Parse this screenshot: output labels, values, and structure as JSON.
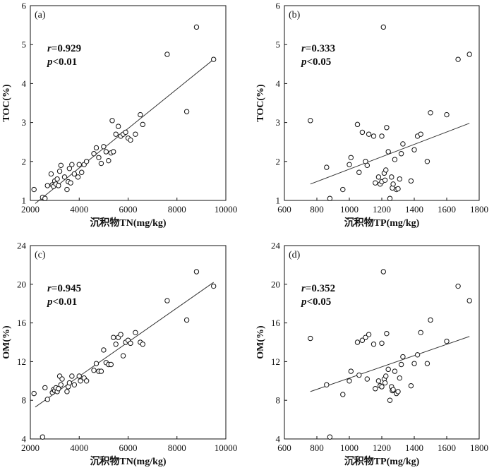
{
  "chart_data": [
    {
      "type": "scatter",
      "panel": "(a)",
      "xlabel": "沉积物TN(mg/kg)",
      "ylabel": "TOC(%)",
      "xlim": [
        2000,
        10000
      ],
      "ylim": [
        1,
        6
      ],
      "xticks": [
        "2000",
        "4000",
        "6000",
        "8000",
        "10000"
      ],
      "yticks": [
        "1",
        "2",
        "3",
        "4",
        "5",
        "6"
      ],
      "stat_r": "=0.929",
      "stat_p": "<0.01",
      "trend": [
        [
          2200,
          0.92
        ],
        [
          9500,
          4.62
        ]
      ],
      "points": [
        [
          2150,
          1.28
        ],
        [
          2500,
          1.08
        ],
        [
          2600,
          1.05
        ],
        [
          2700,
          1.38
        ],
        [
          2850,
          1.68
        ],
        [
          2900,
          1.4
        ],
        [
          2950,
          1.36
        ],
        [
          3000,
          1.5
        ],
        [
          3050,
          1.42
        ],
        [
          3100,
          1.55
        ],
        [
          3150,
          1.38
        ],
        [
          3200,
          1.75
        ],
        [
          3250,
          1.9
        ],
        [
          3400,
          1.6
        ],
        [
          3500,
          1.28
        ],
        [
          3550,
          1.48
        ],
        [
          3600,
          1.82
        ],
        [
          3650,
          1.45
        ],
        [
          3700,
          1.92
        ],
        [
          3800,
          1.68
        ],
        [
          3950,
          1.6
        ],
        [
          4000,
          1.92
        ],
        [
          4100,
          1.72
        ],
        [
          4200,
          1.92
        ],
        [
          4300,
          2.0
        ],
        [
          4600,
          2.2
        ],
        [
          4700,
          2.35
        ],
        [
          4800,
          2.1
        ],
        [
          4900,
          1.95
        ],
        [
          5000,
          2.38
        ],
        [
          5100,
          2.25
        ],
        [
          5200,
          2.02
        ],
        [
          5300,
          2.22
        ],
        [
          5350,
          3.05
        ],
        [
          5400,
          2.25
        ],
        [
          5500,
          2.7
        ],
        [
          5600,
          2.9
        ],
        [
          5700,
          2.65
        ],
        [
          5800,
          2.7
        ],
        [
          5900,
          2.75
        ],
        [
          6000,
          2.6
        ],
        [
          6100,
          2.55
        ],
        [
          6300,
          2.7
        ],
        [
          6500,
          3.2
        ],
        [
          6600,
          2.95
        ],
        [
          7600,
          4.75
        ],
        [
          8400,
          3.28
        ],
        [
          8800,
          5.45
        ],
        [
          9500,
          4.62
        ]
      ]
    },
    {
      "type": "scatter",
      "panel": "(b)",
      "xlabel": "沉积物TP(mg/kg)",
      "ylabel": "TOC(%)",
      "xlim": [
        600,
        1800
      ],
      "ylim": [
        1,
        6
      ],
      "xticks": [
        "600",
        "800",
        "1000",
        "1200",
        "1400",
        "1600",
        "1800"
      ],
      "yticks": [
        "1",
        "2",
        "3",
        "4",
        "5",
        "6"
      ],
      "stat_r": "=0.333",
      "stat_p": "<0.05",
      "trend": [
        [
          760,
          1.42
        ],
        [
          1740,
          2.98
        ]
      ],
      "points": [
        [
          760,
          3.05
        ],
        [
          860,
          1.85
        ],
        [
          880,
          1.05
        ],
        [
          960,
          1.28
        ],
        [
          1000,
          1.92
        ],
        [
          1010,
          2.1
        ],
        [
          1050,
          2.95
        ],
        [
          1060,
          1.72
        ],
        [
          1080,
          2.75
        ],
        [
          1100,
          2.0
        ],
        [
          1110,
          1.9
        ],
        [
          1120,
          2.7
        ],
        [
          1150,
          2.65
        ],
        [
          1160,
          1.45
        ],
        [
          1180,
          1.6
        ],
        [
          1190,
          1.42
        ],
        [
          1200,
          1.48
        ],
        [
          1200,
          2.65
        ],
        [
          1210,
          5.45
        ],
        [
          1215,
          1.7
        ],
        [
          1220,
          1.52
        ],
        [
          1225,
          1.78
        ],
        [
          1230,
          2.87
        ],
        [
          1240,
          2.25
        ],
        [
          1250,
          1.05
        ],
        [
          1260,
          1.6
        ],
        [
          1265,
          1.32
        ],
        [
          1270,
          1.42
        ],
        [
          1280,
          2.05
        ],
        [
          1290,
          1.28
        ],
        [
          1300,
          1.3
        ],
        [
          1310,
          1.55
        ],
        [
          1320,
          2.2
        ],
        [
          1330,
          2.45
        ],
        [
          1380,
          1.5
        ],
        [
          1400,
          2.3
        ],
        [
          1420,
          2.65
        ],
        [
          1440,
          2.7
        ],
        [
          1480,
          2.0
        ],
        [
          1500,
          3.25
        ],
        [
          1600,
          3.2
        ],
        [
          1670,
          4.62
        ],
        [
          1740,
          4.75
        ]
      ]
    },
    {
      "type": "scatter",
      "panel": "(c)",
      "xlabel": "沉积物TN(mg/kg)",
      "ylabel": "OM(%)",
      "xlim": [
        2000,
        10000
      ],
      "ylim": [
        4,
        24
      ],
      "xticks": [
        "2000",
        "4000",
        "6000",
        "8000",
        "10000"
      ],
      "yticks": [
        "4",
        "8",
        "12",
        "16",
        "20",
        "24"
      ],
      "stat_r": "=0.945",
      "stat_p": "<0.01",
      "trend": [
        [
          2200,
          7.3
        ],
        [
          9500,
          20.2
        ]
      ],
      "points": [
        [
          2150,
          8.7
        ],
        [
          2500,
          4.2
        ],
        [
          2600,
          9.3
        ],
        [
          2700,
          8.1
        ],
        [
          2900,
          8.8
        ],
        [
          2950,
          9.1
        ],
        [
          3000,
          9.0
        ],
        [
          3050,
          9.3
        ],
        [
          3100,
          8.9
        ],
        [
          3150,
          9.2
        ],
        [
          3200,
          10.5
        ],
        [
          3250,
          9.6
        ],
        [
          3300,
          10.2
        ],
        [
          3500,
          8.9
        ],
        [
          3550,
          9.4
        ],
        [
          3600,
          9.8
        ],
        [
          3700,
          10.5
        ],
        [
          3800,
          9.6
        ],
        [
          4000,
          10.5
        ],
        [
          4050,
          10.0
        ],
        [
          4200,
          10.3
        ],
        [
          4300,
          10.0
        ],
        [
          4600,
          11.1
        ],
        [
          4700,
          11.8
        ],
        [
          4800,
          11.0
        ],
        [
          4900,
          11.0
        ],
        [
          5000,
          13.2
        ],
        [
          5100,
          11.9
        ],
        [
          5200,
          11.7
        ],
        [
          5300,
          11.7
        ],
        [
          5400,
          14.5
        ],
        [
          5500,
          13.8
        ],
        [
          5600,
          14.5
        ],
        [
          5700,
          14.8
        ],
        [
          5800,
          12.6
        ],
        [
          5900,
          14.0
        ],
        [
          6000,
          14.2
        ],
        [
          6100,
          13.9
        ],
        [
          6300,
          15.0
        ],
        [
          6500,
          14.0
        ],
        [
          6600,
          13.8
        ],
        [
          7600,
          18.3
        ],
        [
          8400,
          16.3
        ],
        [
          8800,
          21.3
        ],
        [
          9500,
          19.8
        ]
      ]
    },
    {
      "type": "scatter",
      "panel": "(d)",
      "xlabel": "沉积物TP(mg/kg)",
      "ylabel": "OM(%)",
      "xlim": [
        600,
        1800
      ],
      "ylim": [
        4,
        24
      ],
      "xticks": [
        "600",
        "800",
        "1000",
        "1200",
        "1400",
        "1600",
        "1800"
      ],
      "yticks": [
        "4",
        "8",
        "12",
        "16",
        "20",
        "24"
      ],
      "stat_r": "=0.352",
      "stat_p": "<0.05",
      "trend": [
        [
          760,
          8.9
        ],
        [
          1740,
          14.6
        ]
      ],
      "points": [
        [
          760,
          14.4
        ],
        [
          860,
          9.6
        ],
        [
          880,
          4.2
        ],
        [
          960,
          8.6
        ],
        [
          1000,
          10.0
        ],
        [
          1010,
          11.0
        ],
        [
          1050,
          14.0
        ],
        [
          1060,
          10.6
        ],
        [
          1080,
          14.2
        ],
        [
          1100,
          14.5
        ],
        [
          1110,
          10.2
        ],
        [
          1120,
          14.8
        ],
        [
          1150,
          13.8
        ],
        [
          1160,
          9.2
        ],
        [
          1180,
          10.0
        ],
        [
          1190,
          9.5
        ],
        [
          1200,
          9.4
        ],
        [
          1200,
          13.9
        ],
        [
          1210,
          21.3
        ],
        [
          1215,
          10.2
        ],
        [
          1220,
          9.8
        ],
        [
          1225,
          10.5
        ],
        [
          1230,
          14.9
        ],
        [
          1240,
          11.2
        ],
        [
          1250,
          8.0
        ],
        [
          1260,
          9.4
        ],
        [
          1265,
          9.0
        ],
        [
          1270,
          9.1
        ],
        [
          1280,
          11.0
        ],
        [
          1290,
          8.7
        ],
        [
          1300,
          8.9
        ],
        [
          1310,
          10.3
        ],
        [
          1320,
          11.7
        ],
        [
          1330,
          12.5
        ],
        [
          1380,
          9.5
        ],
        [
          1400,
          11.8
        ],
        [
          1420,
          12.7
        ],
        [
          1440,
          15.0
        ],
        [
          1480,
          11.8
        ],
        [
          1500,
          16.3
        ],
        [
          1600,
          14.1
        ],
        [
          1670,
          19.8
        ],
        [
          1740,
          18.3
        ]
      ]
    }
  ]
}
